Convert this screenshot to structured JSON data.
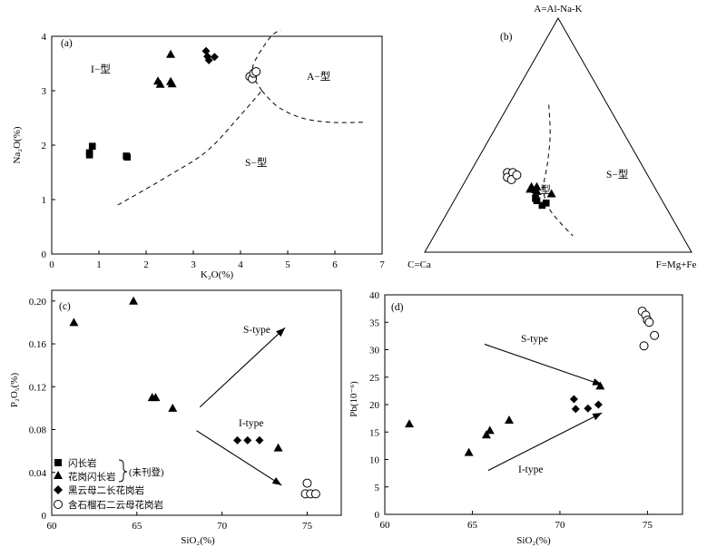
{
  "chart_data": [
    {
      "panel": "(a)",
      "type": "scatter",
      "xlabel": "K₂O(%)",
      "ylabel": "Na₂O(%)",
      "xlim": [
        0,
        7
      ],
      "ylim": [
        0,
        4
      ],
      "xticks": [
        "0",
        "1",
        "2",
        "3",
        "4",
        "5",
        "6",
        "7"
      ],
      "yticks": [
        "0",
        "1",
        "2",
        "3",
        "4"
      ],
      "region_labels": [
        "I−型",
        "A−型",
        "S−型"
      ],
      "series": [
        {
          "marker": "square",
          "points": [
            [
              0.8,
              1.86
            ],
            [
              0.8,
              1.82
            ],
            [
              0.86,
              1.98
            ],
            [
              1.58,
              1.8
            ],
            [
              1.6,
              1.78
            ]
          ]
        },
        {
          "marker": "triangle",
          "points": [
            [
              2.25,
              3.18
            ],
            [
              2.3,
              3.12
            ],
            [
              2.52,
              3.17
            ],
            [
              2.55,
              3.13
            ],
            [
              2.52,
              3.67
            ]
          ]
        },
        {
          "marker": "diamond",
          "points": [
            [
              3.27,
              3.73
            ],
            [
              3.3,
              3.63
            ],
            [
              3.33,
              3.56
            ],
            [
              3.45,
              3.62
            ]
          ]
        },
        {
          "marker": "circle",
          "points": [
            [
              4.2,
              3.26
            ],
            [
              4.25,
              3.22
            ],
            [
              4.28,
              3.32
            ],
            [
              4.33,
              3.35
            ]
          ]
        }
      ],
      "boundaries": [
        [
          [
            1.4,
            0.9
          ],
          [
            2.5,
            1.45
          ],
          [
            3.3,
            1.9
          ],
          [
            4.0,
            2.55
          ],
          [
            4.45,
            3.0
          ]
        ],
        [
          [
            4.45,
            3.0
          ],
          [
            4.25,
            3.4
          ],
          [
            4.6,
            3.95
          ],
          [
            4.85,
            4.12
          ]
        ],
        [
          [
            4.45,
            3.0
          ],
          [
            4.8,
            2.7
          ],
          [
            5.3,
            2.5
          ],
          [
            5.9,
            2.42
          ],
          [
            6.6,
            2.42
          ]
        ]
      ]
    },
    {
      "panel": "(b)",
      "type": "ternary",
      "vertices": {
        "top": "A=Al-Na-K",
        "left": "C=Ca",
        "right": "F=Mg+Fe"
      },
      "region_labels": [
        "I−型",
        "S−型"
      ],
      "series": [
        {
          "marker": "square",
          "points": [
            [
              0.23,
              0.47,
              0.3
            ],
            [
              0.22,
              0.47,
              0.31
            ],
            [
              0.2,
              0.46,
              0.34
            ],
            [
              0.21,
              0.44,
              0.35
            ]
          ]
        },
        {
          "marker": "triangle",
          "points": [
            [
              0.27,
              0.47,
              0.26
            ],
            [
              0.28,
              0.46,
              0.26
            ],
            [
              0.27,
              0.45,
              0.28
            ],
            [
              0.28,
              0.44,
              0.28
            ],
            [
              0.26,
              0.45,
              0.29
            ],
            [
              0.25,
              0.4,
              0.35
            ]
          ]
        },
        {
          "marker": "circle",
          "points": [
            [
              0.34,
              0.52,
              0.14
            ],
            [
              0.32,
              0.53,
              0.15
            ],
            [
              0.34,
              0.5,
              0.16
            ],
            [
              0.31,
              0.52,
              0.17
            ],
            [
              0.33,
              0.49,
              0.18
            ]
          ]
        }
      ],
      "boundary": [
        [
          0.63,
          0.22,
          0.15
        ],
        [
          0.5,
          0.28,
          0.22
        ],
        [
          0.38,
          0.35,
          0.27
        ],
        [
          0.27,
          0.42,
          0.31
        ],
        [
          0.19,
          0.44,
          0.37
        ],
        [
          0.13,
          0.43,
          0.44
        ],
        [
          0.07,
          0.41,
          0.52
        ]
      ]
    },
    {
      "panel": "(c)",
      "type": "scatter",
      "xlabel": "SiO₂(%)",
      "ylabel": "P₂O₅(%)",
      "xlim": [
        60,
        77
      ],
      "ylim": [
        0,
        0.21
      ],
      "xticks": [
        "60",
        "65",
        "70",
        "75"
      ],
      "yticks": [
        "0",
        "0.04",
        "0.08",
        "0.12",
        "0.16",
        "0.20"
      ],
      "trend_labels": [
        "S-type",
        "I-type"
      ],
      "trend_arrows": [
        {
          "from": [
            68.7,
            0.101
          ],
          "to": [
            73.7,
            0.175
          ]
        },
        {
          "from": [
            68.5,
            0.079
          ],
          "to": [
            73.5,
            0.028
          ]
        }
      ],
      "legend": {
        "items": [
          "闪长岩",
          "花岗闪长岩",
          "黑云母二长花岗岩",
          "含石榴石二云母花岗岩"
        ],
        "note": "(未刊登)"
      },
      "series": [
        {
          "marker": "triangle",
          "points": [
            [
              61.3,
              0.18
            ],
            [
              64.8,
              0.2
            ],
            [
              65.9,
              0.11
            ],
            [
              66.1,
              0.11
            ],
            [
              67.1,
              0.1
            ],
            [
              73.3,
              0.063
            ]
          ]
        },
        {
          "marker": "diamond",
          "points": [
            [
              70.9,
              0.07
            ],
            [
              71.5,
              0.07
            ],
            [
              72.2,
              0.07
            ]
          ]
        },
        {
          "marker": "circle",
          "points": [
            [
              75.0,
              0.03
            ],
            [
              74.9,
              0.02
            ],
            [
              75.2,
              0.02
            ],
            [
              75.5,
              0.02
            ]
          ]
        }
      ]
    },
    {
      "panel": "(d)",
      "type": "scatter",
      "xlabel": "SiO₂(%)",
      "ylabel": "Pb(10⁻⁶)",
      "xlim": [
        60,
        77
      ],
      "ylim": [
        0,
        40
      ],
      "xticks": [
        "60",
        "65",
        "70",
        "75"
      ],
      "yticks": [
        "0",
        "5",
        "10",
        "15",
        "20",
        "25",
        "30",
        "35",
        "40"
      ],
      "trend_labels": [
        "S-type",
        "I-type"
      ],
      "trend_arrows": [
        {
          "from": [
            65.7,
            31.0
          ],
          "to": [
            72.4,
            23.6
          ]
        },
        {
          "from": [
            65.9,
            8.0
          ],
          "to": [
            72.4,
            18.5
          ]
        }
      ],
      "series": [
        {
          "marker": "triangle",
          "points": [
            [
              61.4,
              16.5
            ],
            [
              64.8,
              11.3
            ],
            [
              65.8,
              14.5
            ],
            [
              66.0,
              15.3
            ],
            [
              67.1,
              17.2
            ],
            [
              72.3,
              23.4
            ]
          ]
        },
        {
          "marker": "diamond",
          "points": [
            [
              70.8,
              21.0
            ],
            [
              70.9,
              19.2
            ],
            [
              71.6,
              19.3
            ],
            [
              72.2,
              20.0
            ]
          ]
        },
        {
          "marker": "circle",
          "points": [
            [
              74.7,
              37.0
            ],
            [
              74.9,
              36.3
            ],
            [
              75.0,
              35.4
            ],
            [
              75.1,
              35.0
            ],
            [
              75.4,
              32.6
            ],
            [
              74.8,
              30.7
            ]
          ]
        }
      ]
    }
  ]
}
